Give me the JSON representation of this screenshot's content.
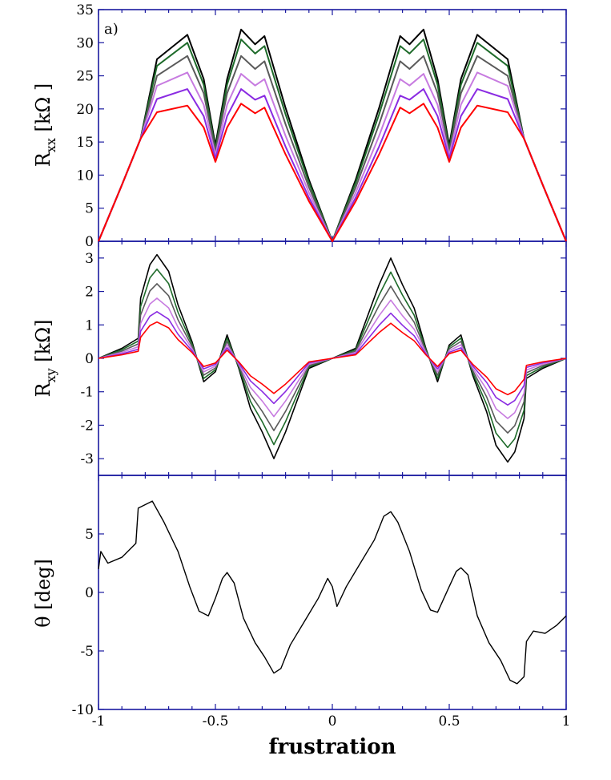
{
  "chart_data": [
    {
      "panel": "top",
      "type": "line",
      "annotation": "a)",
      "ylabel_main": "R",
      "ylabel_sub": "xx",
      "ylabel_unit": " [kΩ ]",
      "xlim": [
        -1,
        1
      ],
      "ylim": [
        0,
        35
      ],
      "yticks": [
        0,
        5,
        10,
        15,
        20,
        25,
        30,
        35
      ],
      "ytick_labels": [
        "0",
        "5",
        "10",
        "15",
        "20",
        "25",
        "30",
        "35"
      ],
      "peak_frustrations": [
        -0.75,
        -0.62,
        -0.39,
        -0.29,
        0.29,
        0.39,
        0.62,
        0.75
      ],
      "series": [
        {
          "color": "#000000",
          "values": [
            27.5,
            31.2,
            32.0,
            31.0,
            31.0,
            32.0,
            31.2,
            27.5
          ],
          "dip_mid": 14.5,
          "dip_edge": 28.5
        },
        {
          "color": "#1e6b2a",
          "values": [
            26.5,
            30.0,
            30.5,
            29.5,
            29.5,
            30.5,
            30.0,
            26.5
          ],
          "dip_mid": 14.0,
          "dip_edge": 27.5
        },
        {
          "color": "#5a5a5a",
          "values": [
            25.0,
            28.0,
            28.0,
            27.2,
            27.2,
            28.0,
            28.0,
            25.0
          ],
          "dip_mid": 13.6,
          "dip_edge": 26.0
        },
        {
          "color": "#c77be0",
          "values": [
            23.5,
            25.5,
            25.3,
            24.5,
            24.5,
            25.3,
            25.5,
            23.5
          ],
          "dip_mid": 13.0,
          "dip_edge": 24.0
        },
        {
          "color": "#8a2be2",
          "values": [
            21.5,
            23.0,
            23.0,
            22.0,
            22.0,
            23.0,
            23.0,
            21.5
          ],
          "dip_mid": 12.5,
          "dip_edge": 22.0
        },
        {
          "color": "#ff0000",
          "values": [
            19.5,
            20.5,
            20.8,
            20.2,
            20.2,
            20.8,
            20.5,
            19.5
          ],
          "dip_mid": 12.0,
          "dip_edge": 20.0
        }
      ]
    },
    {
      "panel": "middle",
      "type": "line",
      "ylabel_main": "R",
      "ylabel_sub": "xy",
      "ylabel_unit": " [kΩ]",
      "xlim": [
        -1,
        1
      ],
      "ylim": [
        -3.5,
        3.5
      ],
      "yticks": [
        -3,
        -2,
        -1,
        0,
        1,
        2,
        3
      ],
      "ytick_labels": [
        "-3",
        "-2",
        "-1",
        "0",
        "1",
        "2",
        "3"
      ],
      "series": [
        {
          "color": "#000000",
          "scale": 1.0
        },
        {
          "color": "#1e6b2a",
          "scale": 0.86
        },
        {
          "color": "#5a5a5a",
          "scale": 0.72
        },
        {
          "color": "#c77be0",
          "scale": 0.58
        },
        {
          "color": "#8a2be2",
          "scale": 0.45
        },
        {
          "color": "#ff0000",
          "scale": 0.35
        }
      ]
    },
    {
      "panel": "bottom",
      "type": "line",
      "ylabel": "θ [deg]",
      "xlabel": "frustration",
      "xlim": [
        -1,
        1
      ],
      "ylim": [
        -10,
        10
      ],
      "yticks": [
        -10,
        -5,
        0,
        5
      ],
      "ytick_labels": [
        "-10",
        "-5",
        "0",
        "5"
      ],
      "xticks": [
        -1,
        -0.5,
        0,
        0.5,
        1
      ],
      "xtick_labels": [
        "-1",
        "-0.5",
        "0",
        "0.5",
        "1"
      ],
      "series": [
        {
          "color": "#000000",
          "x": [
            -1,
            -0.99,
            -0.96,
            -0.9,
            -0.84,
            -0.83,
            -0.8,
            -0.77,
            -0.72,
            -0.66,
            -0.61,
            -0.57,
            -0.53,
            -0.5,
            -0.47,
            -0.45,
            -0.42,
            -0.38,
            -0.33,
            -0.29,
            -0.25,
            -0.22,
            -0.18,
            -0.12,
            -0.06,
            -0.02,
            0,
            0.02,
            0.06,
            0.12,
            0.18,
            0.22,
            0.25,
            0.28,
            0.33,
            0.38,
            0.42,
            0.45,
            0.5,
            0.53,
            0.55,
            0.58,
            0.62,
            0.67,
            0.72,
            0.76,
            0.79,
            0.82,
            0.83,
            0.86,
            0.91,
            0.96,
            1
          ],
          "y": [
            2.0,
            3.5,
            2.5,
            3.0,
            4.2,
            7.2,
            7.5,
            7.8,
            6.0,
            3.5,
            0.5,
            -1.6,
            -2.0,
            -0.5,
            1.2,
            1.7,
            0.8,
            -2.2,
            -4.3,
            -5.5,
            -6.9,
            -6.5,
            -4.5,
            -2.5,
            -0.5,
            1.2,
            0.5,
            -1.2,
            0.5,
            2.5,
            4.5,
            6.5,
            6.9,
            6.0,
            3.5,
            0.2,
            -1.5,
            -1.7,
            0.5,
            1.8,
            2.1,
            1.5,
            -2.0,
            -4.3,
            -5.8,
            -7.5,
            -7.8,
            -7.2,
            -4.2,
            -3.3,
            -3.5,
            -2.8,
            -2.0
          ]
        }
      ]
    }
  ]
}
